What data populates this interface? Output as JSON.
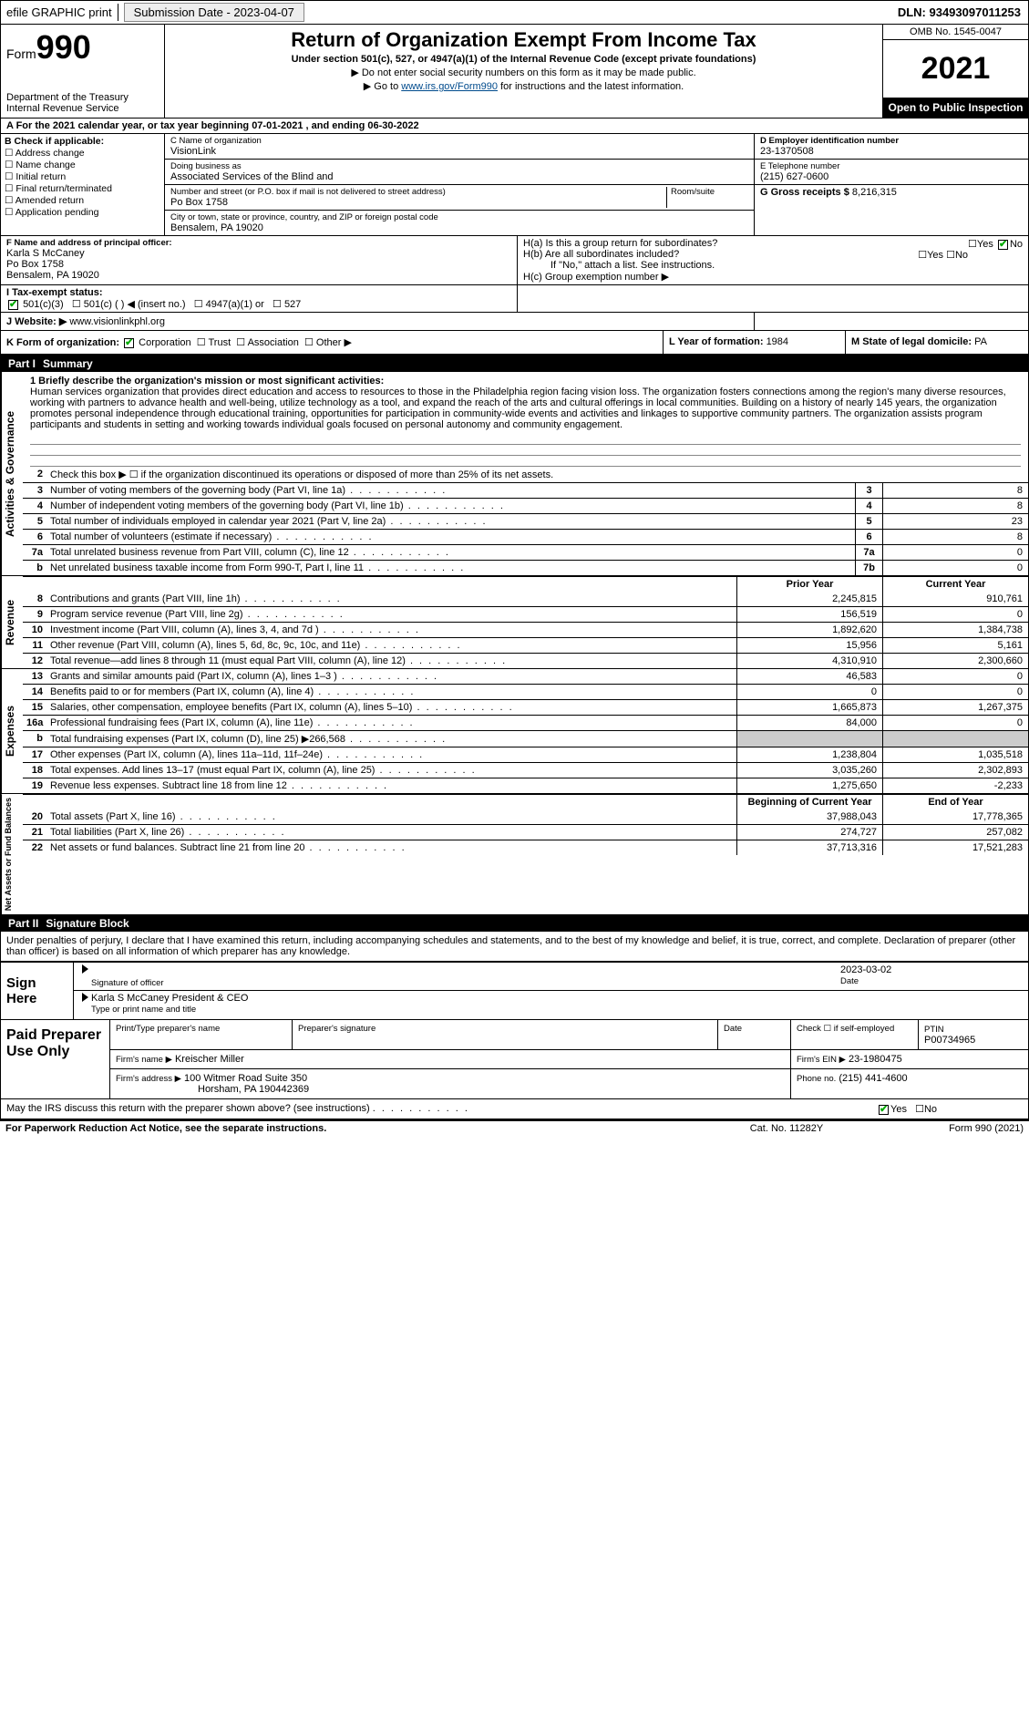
{
  "topbar": {
    "efile": "efile GRAPHIC print",
    "submission": "Submission Date - 2023-04-07",
    "dln": "DLN: 93493097011253"
  },
  "header": {
    "form_label": "Form",
    "form_no": "990",
    "dept": "Department of the Treasury",
    "irs": "Internal Revenue Service",
    "title": "Return of Organization Exempt From Income Tax",
    "sub1": "Under section 501(c), 527, or 4947(a)(1) of the Internal Revenue Code (except private foundations)",
    "sub2": "▶ Do not enter social security numbers on this form as it may be made public.",
    "sub3_pre": "▶ Go to ",
    "sub3_link": "www.irs.gov/Form990",
    "sub3_post": " for instructions and the latest information.",
    "omb": "OMB No. 1545-0047",
    "year": "2021",
    "inspect": "Open to Public Inspection"
  },
  "rowA": "A For the 2021 calendar year, or tax year beginning 07-01-2021   , and ending 06-30-2022",
  "colB": {
    "hdr": "B Check if applicable:",
    "items": [
      "Address change",
      "Name change",
      "Initial return",
      "Final return/terminated",
      "Amended return",
      "Application pending"
    ]
  },
  "colC": {
    "name_lbl": "C Name of organization",
    "name": "VisionLink",
    "dba_lbl": "Doing business as",
    "dba": "Associated Services of the Blind and",
    "addr_lbl": "Number and street (or P.O. box if mail is not delivered to street address)",
    "room_lbl": "Room/suite",
    "addr": "Po Box 1758",
    "city_lbl": "City or town, state or province, country, and ZIP or foreign postal code",
    "city": "Bensalem, PA  19020"
  },
  "colD": {
    "lbl": "D Employer identification number",
    "val": "23-1370508"
  },
  "colE": {
    "lbl": "E Telephone number",
    "val": "(215) 627-0600"
  },
  "colG": {
    "lbl": "G Gross receipts $",
    "val": "8,216,315"
  },
  "colF": {
    "lbl": "F  Name and address of principal officer:",
    "name": "Karla S McCaney",
    "addr1": "Po Box 1758",
    "addr2": "Bensalem, PA  19020"
  },
  "colH": {
    "a": "H(a)  Is this a group return for subordinates?",
    "b": "H(b)  Are all subordinates included?",
    "b_note": "If \"No,\" attach a list. See instructions.",
    "c": "H(c)  Group exemption number ▶",
    "yes": "Yes",
    "no": "No"
  },
  "rowI": {
    "lbl": "I   Tax-exempt status:",
    "opts": [
      "501(c)(3)",
      "501(c) (  ) ◀ (insert no.)",
      "4947(a)(1) or",
      "527"
    ]
  },
  "rowJ": {
    "lbl": "J   Website: ▶",
    "val": "www.visionlinkphl.org"
  },
  "rowK": {
    "lbl": "K Form of organization:",
    "opts": [
      "Corporation",
      "Trust",
      "Association",
      "Other ▶"
    ]
  },
  "rowL": {
    "lbl": "L Year of formation: ",
    "val": "1984"
  },
  "rowM": {
    "lbl": "M State of legal domicile: ",
    "val": "PA"
  },
  "part1": {
    "num": "Part I",
    "title": "Summary"
  },
  "mission": {
    "q": "1   Briefly describe the organization's mission or most significant activities:",
    "text": "Human services organization that provides direct education and access to resources to those in the Philadelphia region facing vision loss. The organization fosters connections among the region's many diverse resources, working with partners to advance health and well-being, utilize technology as a tool, and expand the reach of the arts and cultural offerings in local communities. Building on a history of nearly 145 years, the organization promotes personal independence through educational training, opportunities for participation in community-wide events and activities and linkages to supportive community partners. The organization assists program participants and students in setting and working towards individual goals focused on personal autonomy and community engagement."
  },
  "gov_lines": [
    {
      "n": "2",
      "d": "Check this box ▶ ☐  if the organization discontinued its operations or disposed of more than 25% of its net assets."
    },
    {
      "n": "3",
      "d": "Number of voting members of the governing body (Part VI, line 1a)",
      "box": "3",
      "v": "8"
    },
    {
      "n": "4",
      "d": "Number of independent voting members of the governing body (Part VI, line 1b)",
      "box": "4",
      "v": "8"
    },
    {
      "n": "5",
      "d": "Total number of individuals employed in calendar year 2021 (Part V, line 2a)",
      "box": "5",
      "v": "23"
    },
    {
      "n": "6",
      "d": "Total number of volunteers (estimate if necessary)",
      "box": "6",
      "v": "8"
    },
    {
      "n": "7a",
      "d": "Total unrelated business revenue from Part VIII, column (C), line 12",
      "box": "7a",
      "v": "0"
    },
    {
      "n": "b",
      "d": "Net unrelated business taxable income from Form 990-T, Part I, line 11",
      "box": "7b",
      "v": "0"
    }
  ],
  "col_hdrs": {
    "prior": "Prior Year",
    "current": "Current Year"
  },
  "revenue": [
    {
      "n": "8",
      "d": "Contributions and grants (Part VIII, line 1h)",
      "p": "2,245,815",
      "c": "910,761"
    },
    {
      "n": "9",
      "d": "Program service revenue (Part VIII, line 2g)",
      "p": "156,519",
      "c": "0"
    },
    {
      "n": "10",
      "d": "Investment income (Part VIII, column (A), lines 3, 4, and 7d )",
      "p": "1,892,620",
      "c": "1,384,738"
    },
    {
      "n": "11",
      "d": "Other revenue (Part VIII, column (A), lines 5, 6d, 8c, 9c, 10c, and 11e)",
      "p": "15,956",
      "c": "5,161"
    },
    {
      "n": "12",
      "d": "Total revenue—add lines 8 through 11 (must equal Part VIII, column (A), line 12)",
      "p": "4,310,910",
      "c": "2,300,660"
    }
  ],
  "expenses": [
    {
      "n": "13",
      "d": "Grants and similar amounts paid (Part IX, column (A), lines 1–3 )",
      "p": "46,583",
      "c": "0"
    },
    {
      "n": "14",
      "d": "Benefits paid to or for members (Part IX, column (A), line 4)",
      "p": "0",
      "c": "0"
    },
    {
      "n": "15",
      "d": "Salaries, other compensation, employee benefits (Part IX, column (A), lines 5–10)",
      "p": "1,665,873",
      "c": "1,267,375"
    },
    {
      "n": "16a",
      "d": "Professional fundraising fees (Part IX, column (A), line 11e)",
      "p": "84,000",
      "c": "0"
    },
    {
      "n": "b",
      "d": "Total fundraising expenses (Part IX, column (D), line 25) ▶266,568",
      "p": "",
      "c": "",
      "grey": true
    },
    {
      "n": "17",
      "d": "Other expenses (Part IX, column (A), lines 11a–11d, 11f–24e)",
      "p": "1,238,804",
      "c": "1,035,518"
    },
    {
      "n": "18",
      "d": "Total expenses. Add lines 13–17 (must equal Part IX, column (A), line 25)",
      "p": "3,035,260",
      "c": "2,302,893"
    },
    {
      "n": "19",
      "d": "Revenue less expenses. Subtract line 18 from line 12",
      "p": "1,275,650",
      "c": "-2,233"
    }
  ],
  "na_hdrs": {
    "beg": "Beginning of Current Year",
    "end": "End of Year"
  },
  "netassets": [
    {
      "n": "20",
      "d": "Total assets (Part X, line 16)",
      "p": "37,988,043",
      "c": "17,778,365"
    },
    {
      "n": "21",
      "d": "Total liabilities (Part X, line 26)",
      "p": "274,727",
      "c": "257,082"
    },
    {
      "n": "22",
      "d": "Net assets or fund balances. Subtract line 21 from line 20",
      "p": "37,713,316",
      "c": "17,521,283"
    }
  ],
  "sides": {
    "gov": "Activities & Governance",
    "rev": "Revenue",
    "exp": "Expenses",
    "na": "Net Assets or Fund Balances"
  },
  "part2": {
    "num": "Part II",
    "title": "Signature Block"
  },
  "penalties": "Under penalties of perjury, I declare that I have examined this return, including accompanying schedules and statements, and to the best of my knowledge and belief, it is true, correct, and complete. Declaration of preparer (other than officer) is based on all information of which preparer has any knowledge.",
  "sign": {
    "here": "Sign Here",
    "sig_lbl": "Signature of officer",
    "date_lbl": "Date",
    "date": "2023-03-02",
    "name": "Karla S McCaney  President & CEO",
    "name_lbl": "Type or print name and title"
  },
  "paid": {
    "label": "Paid Preparer Use Only",
    "col1": "Print/Type preparer's name",
    "col2": "Preparer's signature",
    "col3": "Date",
    "col4a": "Check ☐ if self-employed",
    "col4b": "PTIN",
    "ptin": "P00734965",
    "firm_lbl": "Firm's name   ▶",
    "firm": "Kreischer Miller",
    "ein_lbl": "Firm's EIN ▶",
    "ein": "23-1980475",
    "addr_lbl": "Firm's address ▶",
    "addr": "100 Witmer Road Suite 350",
    "addr2": "Horsham, PA  190442369",
    "phone_lbl": "Phone no.",
    "phone": "(215) 441-4600"
  },
  "discuss": {
    "q": "May the IRS discuss this return with the preparer shown above? (see instructions)",
    "yes": "Yes",
    "no": "No"
  },
  "footer": {
    "l": "For Paperwork Reduction Act Notice, see the separate instructions.",
    "m": "Cat. No. 11282Y",
    "r": "Form 990 (2021)"
  }
}
